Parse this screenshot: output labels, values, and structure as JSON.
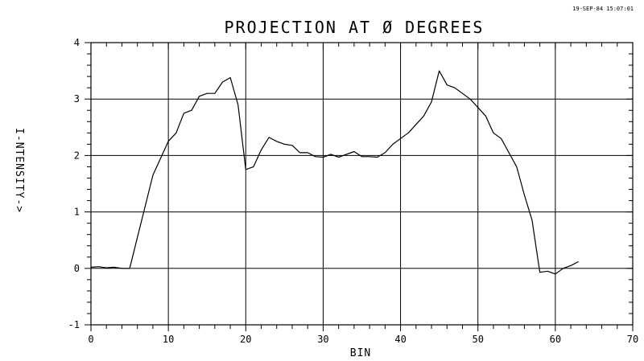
{
  "chart_data": {
    "type": "line",
    "title": "PROJECTION AT Ø DEGREES",
    "timestamp": "19-SEP-84 15:07:01",
    "xlabel": "BIN",
    "ylabel": "I-NTENSITY->",
    "xlim": [
      0,
      70
    ],
    "ylim": [
      -1,
      4
    ],
    "xticks": [
      0,
      10,
      20,
      30,
      40,
      50,
      60,
      70
    ],
    "xtick_labels": [
      "0",
      "10",
      "20",
      "30",
      "40",
      "50",
      "60",
      "70"
    ],
    "yticks": [
      -1,
      0,
      1,
      2,
      3,
      4
    ],
    "ytick_labels": [
      "-1",
      "0",
      "1",
      "2",
      "3",
      "4"
    ],
    "grid": true,
    "series": [
      {
        "x": [
          0,
          1,
          2,
          3,
          4,
          5,
          6,
          7,
          8,
          9,
          10,
          11,
          12,
          13,
          14,
          15,
          16,
          17,
          18,
          19,
          20,
          21,
          22,
          23,
          24,
          25,
          26,
          27,
          28,
          29,
          30,
          31,
          32,
          33,
          34,
          35,
          36,
          37,
          38,
          39,
          40,
          41,
          42,
          43,
          44,
          45,
          46,
          47,
          48,
          49,
          50,
          51,
          52,
          53,
          54,
          55,
          56,
          57,
          58,
          59,
          60,
          61,
          62,
          63
        ],
        "y": [
          0.02,
          0.03,
          0.01,
          0.02,
          0.0,
          0.0,
          0.55,
          1.1,
          1.65,
          1.95,
          2.25,
          2.4,
          2.75,
          2.8,
          3.05,
          3.1,
          3.1,
          3.3,
          3.38,
          2.9,
          1.75,
          1.8,
          2.1,
          2.32,
          2.25,
          2.2,
          2.18,
          2.05,
          2.05,
          1.98,
          1.97,
          2.02,
          1.97,
          2.02,
          2.07,
          1.98,
          1.98,
          1.97,
          2.05,
          2.2,
          2.3,
          2.4,
          2.55,
          2.7,
          2.95,
          3.5,
          3.25,
          3.2,
          3.1,
          3.0,
          2.85,
          2.7,
          2.4,
          2.3,
          2.05,
          1.8,
          1.3,
          0.85,
          -0.07,
          -0.05,
          -0.1,
          0.0,
          0.05,
          0.12
        ]
      }
    ]
  }
}
